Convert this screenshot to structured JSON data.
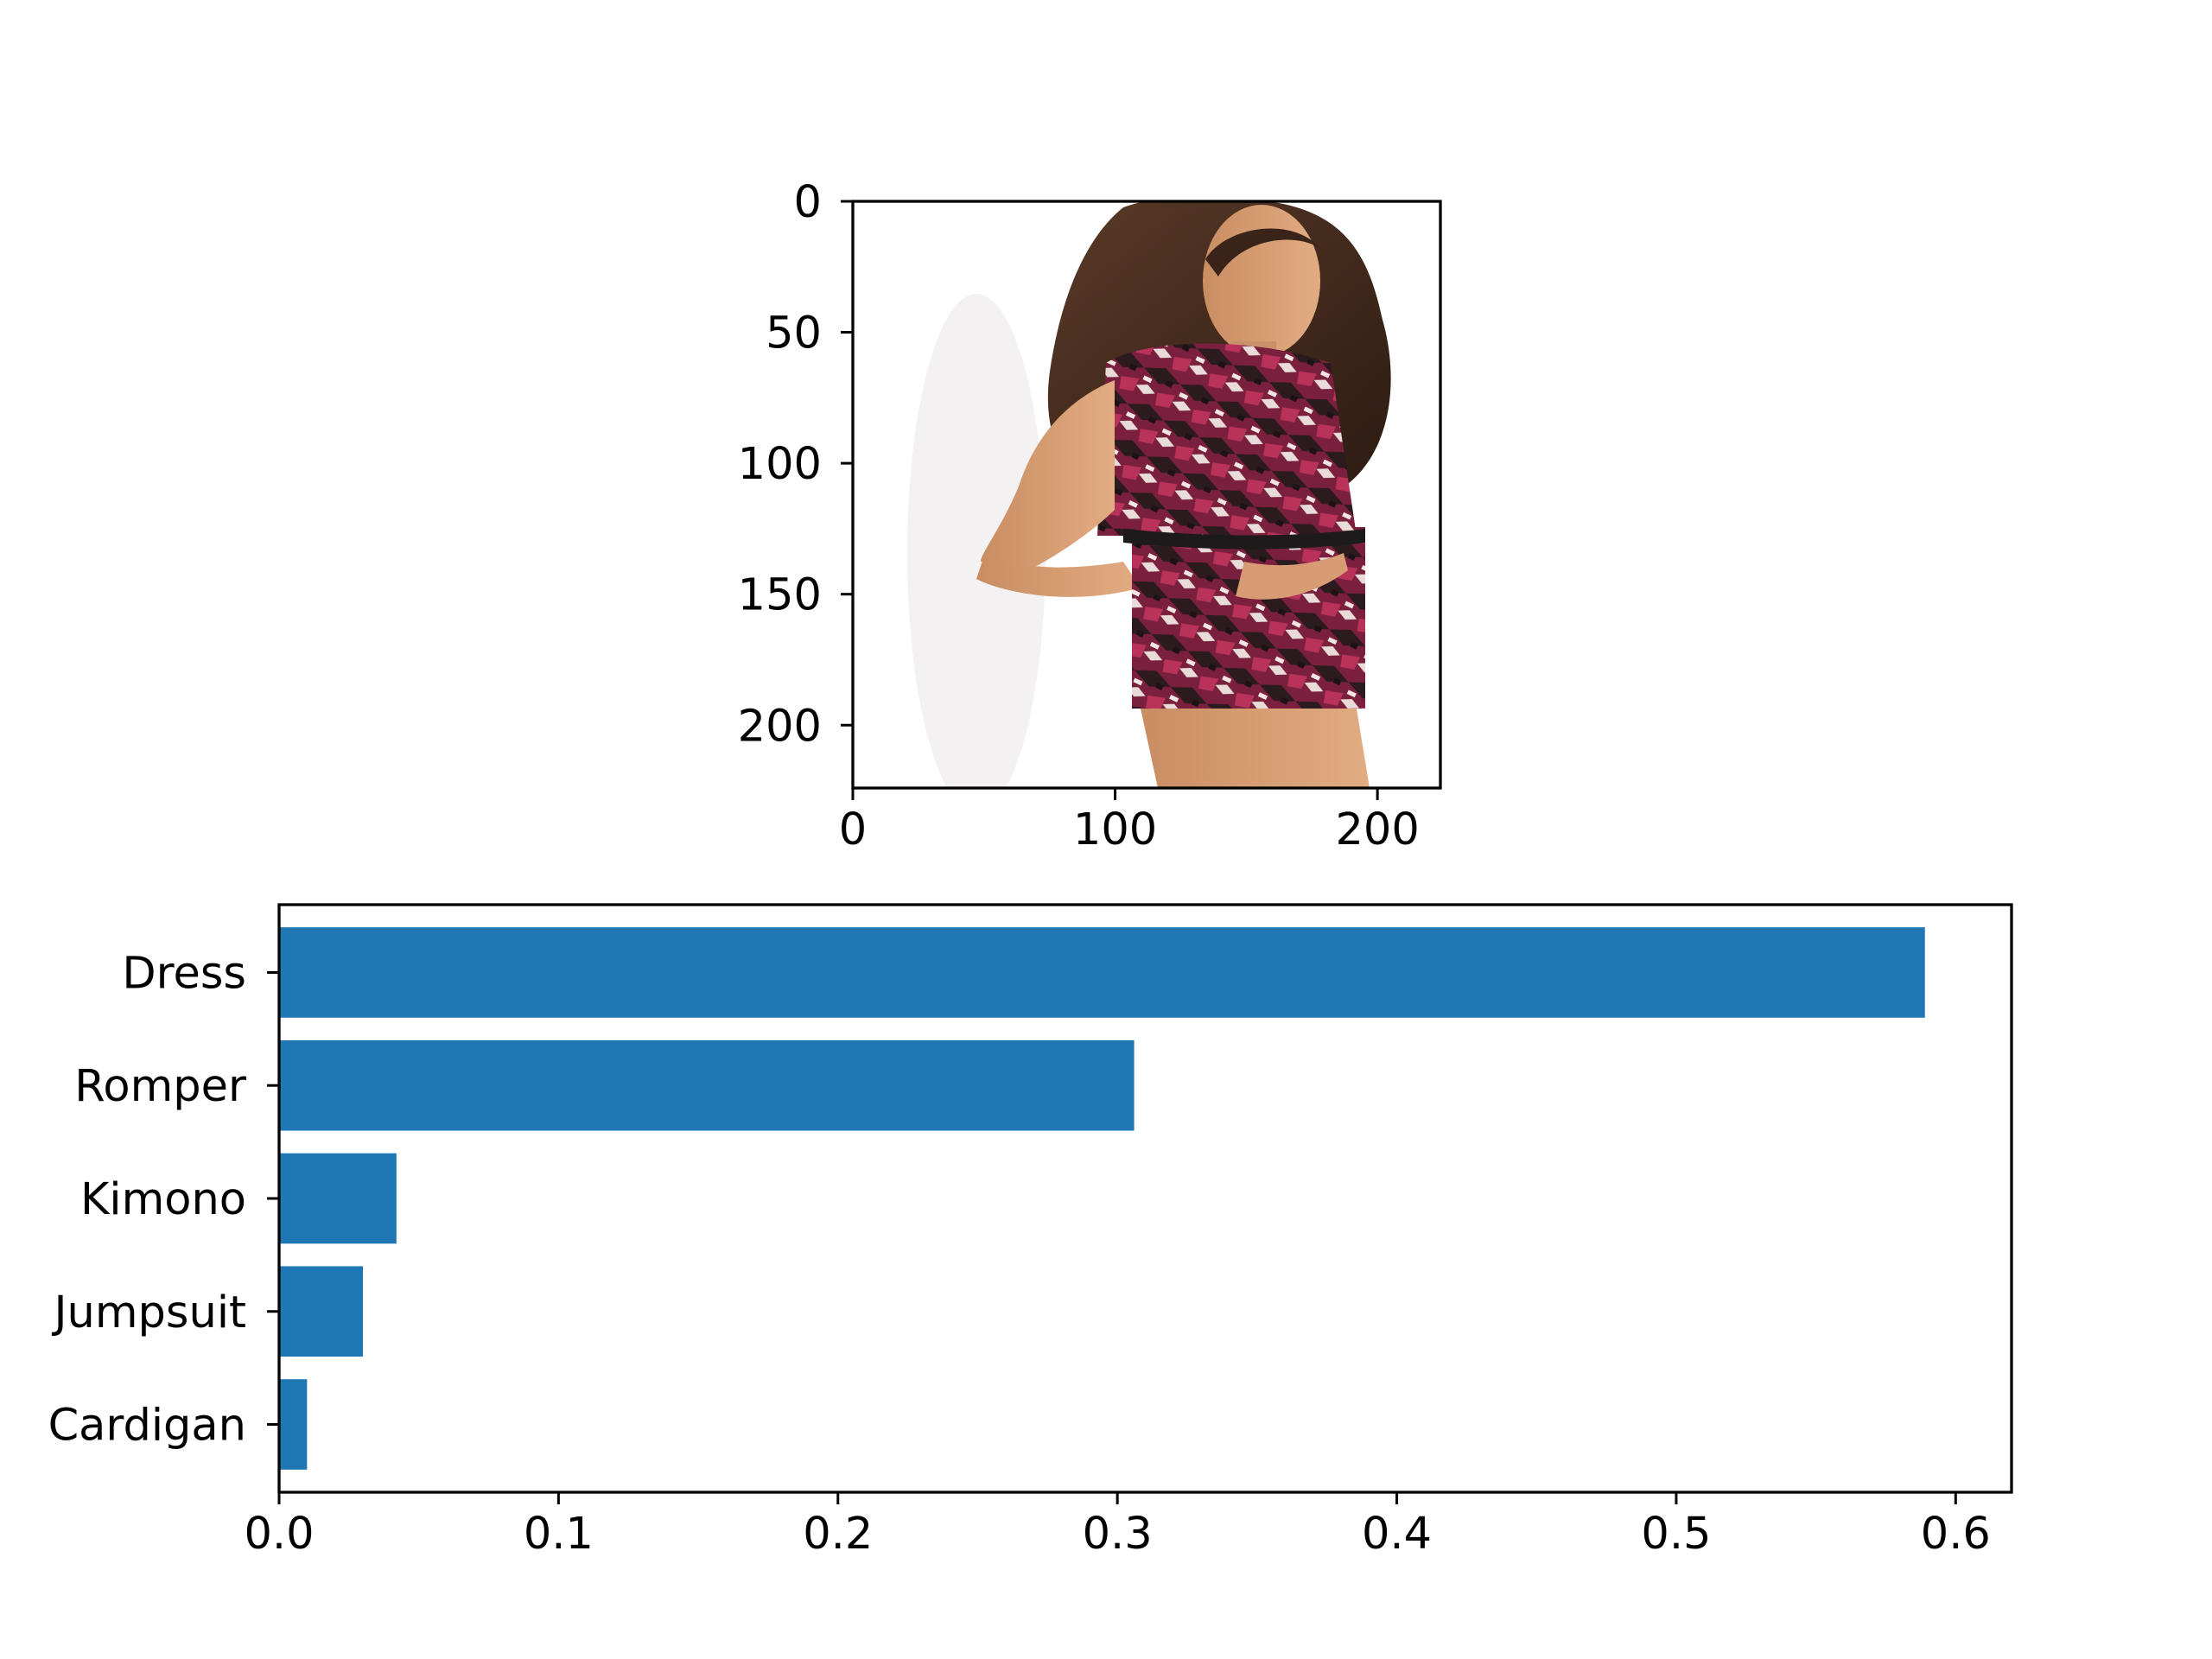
{
  "image_panel": {
    "description_icon": "photo-woman-in-printed-romper",
    "xlim": [
      0,
      224
    ],
    "ylim": [
      224,
      0
    ],
    "xticks": [
      0,
      100,
      200
    ],
    "yticks": [
      0,
      50,
      100,
      150,
      200
    ]
  },
  "chart_data": {
    "type": "bar",
    "orientation": "horizontal",
    "categories": [
      "Dress",
      "Romper",
      "Kimono",
      "Jumpsuit",
      "Cardigan"
    ],
    "values": [
      0.589,
      0.306,
      0.042,
      0.03,
      0.01
    ],
    "title": "",
    "xlabel": "",
    "ylabel": "",
    "xlim": [
      0.0,
      0.62
    ],
    "xticks": [
      "0.0",
      "0.1",
      "0.2",
      "0.3",
      "0.4",
      "0.5",
      "0.6"
    ],
    "bar_color": "#1f77b4",
    "grid": false,
    "legend": "none"
  }
}
